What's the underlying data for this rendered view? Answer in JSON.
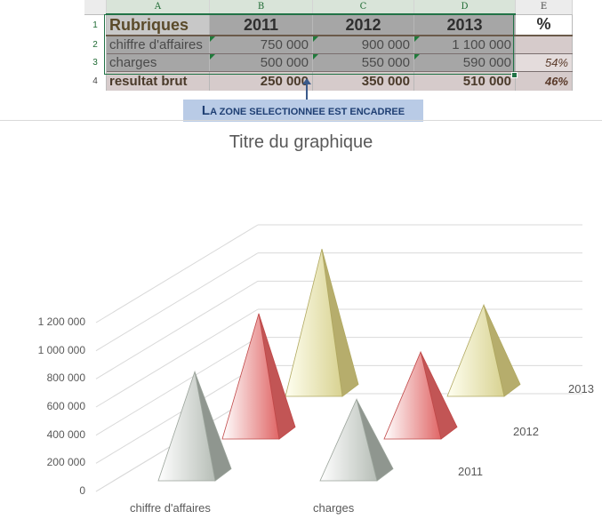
{
  "sheet": {
    "col_headers": [
      "A",
      "B",
      "C",
      "D",
      "E"
    ],
    "row_headers": [
      "1",
      "2",
      "3",
      "4"
    ],
    "rows": [
      [
        "Rubriques",
        "2011",
        "2012",
        "2013",
        "%"
      ],
      [
        "chiffre d'affaires",
        "750 000",
        "900 000",
        "1 100 000",
        ""
      ],
      [
        "charges",
        "500 000",
        "550 000",
        "590 000",
        "54%"
      ],
      [
        "resultat brut",
        "250 000",
        "350 000",
        "510 000",
        "46%"
      ]
    ]
  },
  "callout": {
    "first_letter": "L",
    "rest": "A ZONE SELECTIONNEE EST ENCADREE"
  },
  "colors": {
    "accent_green": "#217346",
    "pyramid_2011": "#cfd5cf",
    "pyramid_2012": "#e88e8e",
    "pyramid_2013": "#e2dea8"
  },
  "chart_data": {
    "type": "bar",
    "subtype": "3d-pyramid",
    "title": "Titre du graphique",
    "categories": [
      "chiffre d'affaires",
      "charges"
    ],
    "series": [
      {
        "name": "2011",
        "values": [
          750000,
          500000
        ]
      },
      {
        "name": "2012",
        "values": [
          900000,
          550000
        ]
      },
      {
        "name": "2013",
        "values": [
          1100000,
          590000
        ]
      }
    ],
    "y_ticks": [
      "0",
      "200 000",
      "400 000",
      "600 000",
      "800 000",
      "1 000 000",
      "1 200 000"
    ],
    "ylim": [
      0,
      1200000
    ],
    "grid": true
  }
}
